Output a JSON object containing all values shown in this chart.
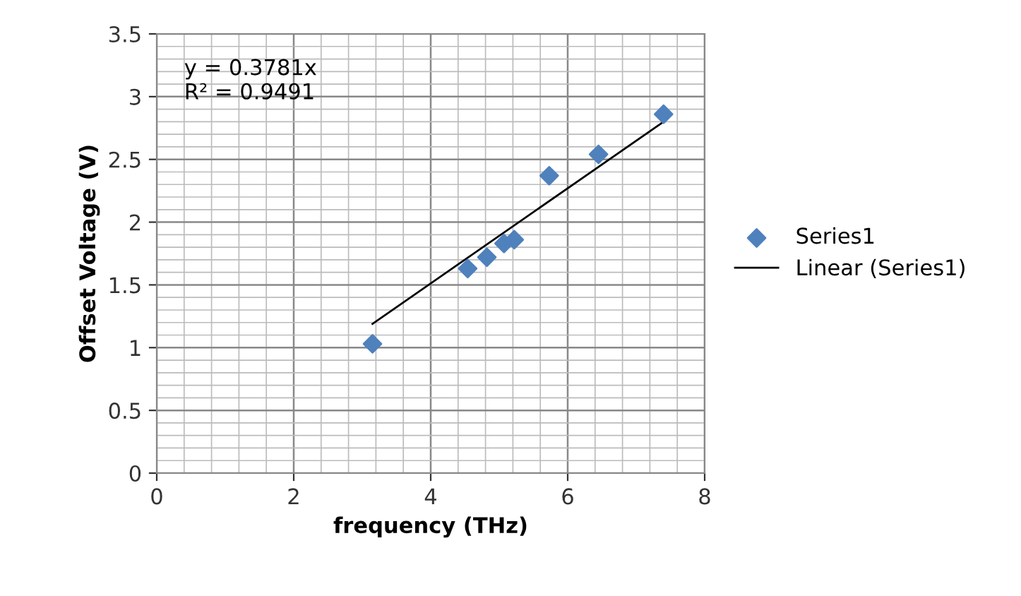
{
  "chart_data": {
    "type": "scatter",
    "xlabel": "frequency (THz)",
    "ylabel": "Offset Voltage (V)",
    "xlim": [
      0,
      8
    ],
    "ylim": [
      0,
      3.5
    ],
    "xticks": [
      0,
      2,
      4,
      6,
      8
    ],
    "yticks": [
      0,
      0.5,
      1,
      1.5,
      2,
      2.5,
      3,
      3.5
    ],
    "grid": true,
    "legend": "right",
    "marker": "diamond",
    "annotations": [
      "y = 0.3781x",
      "R² = 0.9491"
    ],
    "series": [
      {
        "name": "Series1",
        "color": "#4f81bd",
        "x": [
          3.15,
          4.54,
          4.82,
          5.07,
          5.22,
          5.73,
          6.45,
          7.4
        ],
        "values": [
          1.03,
          1.63,
          1.72,
          1.83,
          1.86,
          2.37,
          2.54,
          2.86
        ]
      },
      {
        "name": "Linear (Series1)",
        "type": "line",
        "color": "#000000",
        "marker": "none",
        "x": [
          3.15,
          7.4
        ],
        "values": [
          1.19,
          2.8
        ]
      }
    ]
  }
}
